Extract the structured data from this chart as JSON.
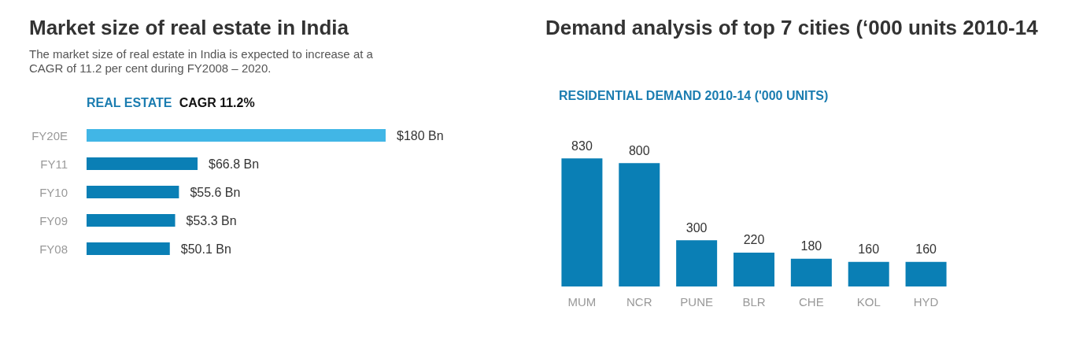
{
  "chart_data": [
    {
      "type": "bar",
      "orientation": "horizontal",
      "title": "Market size of real estate in India",
      "subtitle": "The market size of real estate in India is expected to increase at a CAGR of 11.2 per cent during FY2008 – 2020.",
      "annotations": [
        "REAL ESTATE",
        "CAGR 11.2%"
      ],
      "categories": [
        "FY20E",
        "FY11",
        "FY10",
        "FY09",
        "FY08"
      ],
      "values": [
        180,
        66.8,
        55.6,
        53.3,
        50.1
      ],
      "colors": [
        "#41b6e6",
        "#0a7fb5",
        "#0a7fb5",
        "#0a7fb5",
        "#0a7fb5"
      ],
      "value_labels": [
        "$180 Bn",
        "$66.8 Bn",
        "$55.6 Bn",
        "$53.3 Bn",
        "$50.1 Bn"
      ]
    },
    {
      "type": "bar",
      "title": "Demand analysis of top 7 cities (‘000 units 2010-14",
      "subtitle": "RESIDENTIAL DEMAND 2010-14 ('000 UNITS)",
      "categories": [
        "MUM",
        "NCR",
        "PUNE",
        "BLR",
        "CHE",
        "KOL",
        "HYD"
      ],
      "values": [
        830,
        800,
        300,
        220,
        180,
        160,
        160
      ],
      "color": "#0a7fb5",
      "data_labels": true
    }
  ]
}
